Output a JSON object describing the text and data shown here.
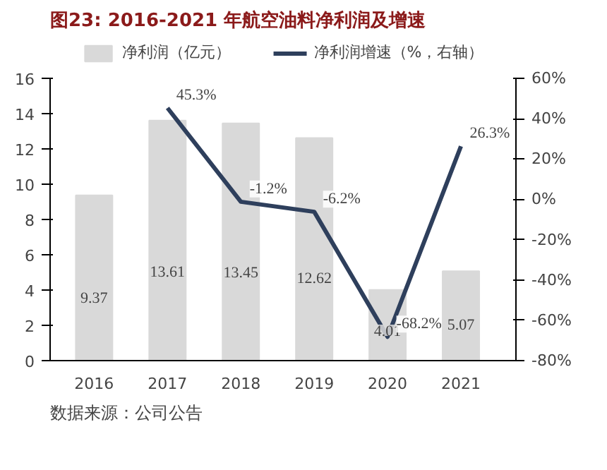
{
  "chart_data": {
    "type": "bar",
    "title": "图23: 2016-2021 年航空油料净利润及增速",
    "categories": [
      "2016",
      "2017",
      "2018",
      "2019",
      "2020",
      "2021"
    ],
    "series": [
      {
        "name": "净利润（亿元）",
        "color": "#d9d9d9",
        "values": [
          9.37,
          13.61,
          13.45,
          12.62,
          4.01,
          5.07
        ],
        "value_labels": [
          "9.37",
          "13.61",
          "13.45",
          "12.62",
          "4.01",
          "5.07"
        ]
      },
      {
        "name": "净利润增速（%，右轴）",
        "type": "line",
        "axis": "y2",
        "color": "#2e3f5c",
        "values": [
          null,
          45.3,
          -1.2,
          -6.2,
          -68.2,
          26.3
        ],
        "value_labels": [
          null,
          "45.3%",
          "-1.2%",
          "-6.2%",
          "-68.2%",
          "26.3%"
        ]
      }
    ],
    "ylim": [
      0,
      16
    ],
    "yticks": [
      0,
      2,
      4,
      6,
      8,
      10,
      12,
      14,
      16
    ],
    "y2lim": [
      -80,
      60
    ],
    "y2ticks": [
      {
        "value": -80,
        "label": "-80%"
      },
      {
        "value": -60,
        "label": "-60%"
      },
      {
        "value": -40,
        "label": "-40%"
      },
      {
        "value": -20,
        "label": "-20%"
      },
      {
        "value": 0,
        "label": "0%"
      },
      {
        "value": 20,
        "label": "20%"
      },
      {
        "value": 40,
        "label": "40%"
      },
      {
        "value": 60,
        "label": "60%"
      }
    ],
    "legend": "top",
    "grid": false,
    "marker": "none",
    "line_style": "solid",
    "annotations": [
      "数据来源：公司公告"
    ]
  }
}
